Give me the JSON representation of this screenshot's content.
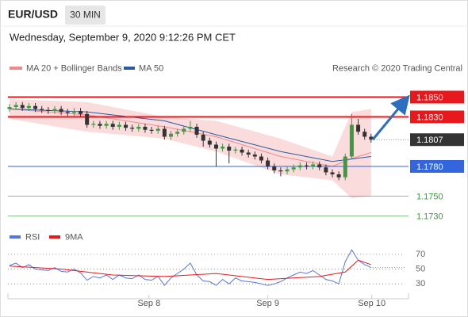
{
  "chart_data": {
    "type": "candlestick",
    "symbol": "EUR/USD",
    "timeframe": "30 MIN",
    "subtitle": "Wednesday, September 9, 2020 9:12:26 PM CET",
    "source": "Research © 2020 Trading Central",
    "ylim": [
      1.172,
      1.1868
    ],
    "xlim": [
      -0.5,
      62
    ],
    "up_color": "#3f9a3f",
    "down_color": "#333333",
    "open": [
      1.1838,
      1.184,
      1.1842,
      1.1839,
      1.1841,
      1.1838,
      1.1837,
      1.1836,
      1.1838,
      1.1835,
      1.1834,
      1.1836,
      1.1833,
      1.1822,
      1.1823,
      1.1821,
      1.1823,
      1.182,
      1.1822,
      1.1819,
      1.1818,
      1.182,
      1.1817,
      1.1816,
      1.1818,
      1.181,
      1.1813,
      1.1815,
      1.1818,
      1.182,
      1.1812,
      1.1806,
      1.1802,
      1.1798,
      1.18,
      1.1796,
      1.1797,
      1.1794,
      1.1792,
      1.179,
      1.1786,
      1.178,
      1.1776,
      1.1775,
      1.1777,
      1.1779,
      1.1781,
      1.178,
      1.1782,
      1.1779,
      1.1774,
      1.1772,
      1.1769,
      1.179,
      1.1822,
      1.1815,
      1.181
    ],
    "high": [
      1.1843,
      1.1845,
      1.1845,
      1.1844,
      1.1844,
      1.1841,
      1.184,
      1.1841,
      1.1841,
      1.1838,
      1.1839,
      1.1839,
      1.1836,
      1.1826,
      1.1826,
      1.1826,
      1.1826,
      1.1825,
      1.1825,
      1.1822,
      1.1823,
      1.1823,
      1.182,
      1.1821,
      1.1821,
      1.1816,
      1.1818,
      1.1821,
      1.1826,
      1.1823,
      1.1815,
      1.1809,
      1.1805,
      1.1803,
      1.1803,
      1.18,
      1.18,
      1.1797,
      1.1795,
      1.1793,
      1.1789,
      1.1783,
      1.1779,
      1.178,
      1.1782,
      1.1784,
      1.1784,
      1.1785,
      1.1785,
      1.1782,
      1.1777,
      1.1775,
      1.1793,
      1.1833,
      1.1828,
      1.1818,
      1.1813
    ],
    "low": [
      1.1835,
      1.1837,
      1.1836,
      1.1836,
      1.1835,
      1.1834,
      1.1833,
      1.1833,
      1.1832,
      1.1831,
      1.1831,
      1.183,
      1.1819,
      1.1819,
      1.1818,
      1.1818,
      1.1817,
      1.1817,
      1.1816,
      1.1815,
      1.1815,
      1.1814,
      1.1813,
      1.1813,
      1.1807,
      1.1807,
      1.181,
      1.1812,
      1.1815,
      1.1809,
      1.18,
      1.1799,
      1.178,
      1.1795,
      1.1783,
      1.1793,
      1.1791,
      1.1789,
      1.1787,
      1.1783,
      1.1777,
      1.1773,
      1.177,
      1.1772,
      1.1774,
      1.1776,
      1.1777,
      1.1777,
      1.1776,
      1.1771,
      1.1769,
      1.1766,
      1.1766,
      1.1787,
      1.1812,
      1.1807,
      1.1804
    ],
    "close": [
      1.184,
      1.1842,
      1.1839,
      1.1841,
      1.1838,
      1.1837,
      1.1836,
      1.1838,
      1.1835,
      1.1834,
      1.1836,
      1.1833,
      1.1822,
      1.1823,
      1.1821,
      1.1823,
      1.182,
      1.1822,
      1.1819,
      1.1818,
      1.182,
      1.1817,
      1.1816,
      1.1818,
      1.181,
      1.1813,
      1.1815,
      1.1818,
      1.182,
      1.1812,
      1.1806,
      1.1802,
      1.1798,
      1.18,
      1.1796,
      1.1797,
      1.1794,
      1.1792,
      1.179,
      1.1786,
      1.178,
      1.1776,
      1.1775,
      1.1777,
      1.1779,
      1.1781,
      1.178,
      1.1782,
      1.1779,
      1.1774,
      1.1772,
      1.1769,
      1.179,
      1.1822,
      1.1815,
      1.181,
      1.1807
    ],
    "xticks": [
      {
        "value": 21.6,
        "label": "Sep 8"
      },
      {
        "value": 40,
        "label": "Sep 9"
      },
      {
        "value": 56.1,
        "label": "Sep 10"
      }
    ],
    "bands": {
      "name": "MA 20 + Bollinger Bands",
      "color": "#f08a8a",
      "x": [
        0,
        12,
        24,
        32,
        42,
        50,
        53,
        56
      ],
      "upper": [
        1.1848,
        1.1845,
        1.183,
        1.1826,
        1.1808,
        1.179,
        1.1835,
        1.1838
      ],
      "lower": [
        1.1828,
        1.1815,
        1.1808,
        1.1795,
        1.1772,
        1.1766,
        1.1748,
        1.175
      ],
      "values": [
        1.1838,
        1.1832,
        1.182,
        1.181,
        1.179,
        1.178,
        1.1788,
        1.1794
      ]
    },
    "ma50": {
      "name": "MA 50",
      "color": "#2c5aa0",
      "x": [
        0,
        12,
        24,
        32,
        42,
        50,
        56
      ],
      "values": [
        1.1838,
        1.1835,
        1.1826,
        1.1812,
        1.1795,
        1.1785,
        1.179
      ]
    },
    "levels": [
      {
        "value": 1.185,
        "label": "1.1850",
        "color": "#e8191d",
        "style": "box"
      },
      {
        "value": 1.183,
        "label": "1.1830",
        "color": "#e8191d",
        "style": "box"
      },
      {
        "value": 1.1807,
        "label": "1.1807",
        "color": "#333333",
        "style": "current"
      },
      {
        "value": 1.178,
        "label": "1.1780",
        "color": "#3366dd",
        "style": "box"
      },
      {
        "value": 1.175,
        "label": "1.1750",
        "color": "#3a9a3a",
        "style": "text"
      },
      {
        "value": 1.173,
        "label": "1.1730",
        "color": "#3a9a3a",
        "style": "text"
      }
    ],
    "rsi": {
      "name": "RSI",
      "color": "#5577dd",
      "values": [
        55,
        58,
        52,
        56,
        50,
        49,
        48,
        52,
        47,
        46,
        50,
        45,
        35,
        40,
        38,
        42,
        36,
        42,
        38,
        37,
        42,
        36,
        35,
        40,
        28,
        38,
        44,
        50,
        58,
        42,
        34,
        33,
        28,
        36,
        30,
        38,
        34,
        33,
        32,
        30,
        28,
        30,
        33,
        38,
        42,
        46,
        44,
        48,
        42,
        36,
        34,
        30,
        60,
        76,
        62,
        56,
        52
      ]
    },
    "rsi_ma": {
      "name": "9MA",
      "color": "#e8191d",
      "x": [
        0,
        8,
        16,
        24,
        32,
        40,
        48,
        52,
        54,
        56
      ],
      "values": [
        54,
        50,
        42,
        40,
        44,
        36,
        40,
        46,
        62,
        56
      ]
    },
    "rsi_ylim": [
      12,
      87
    ],
    "rsi_yticks": [
      70,
      50,
      30
    ]
  }
}
